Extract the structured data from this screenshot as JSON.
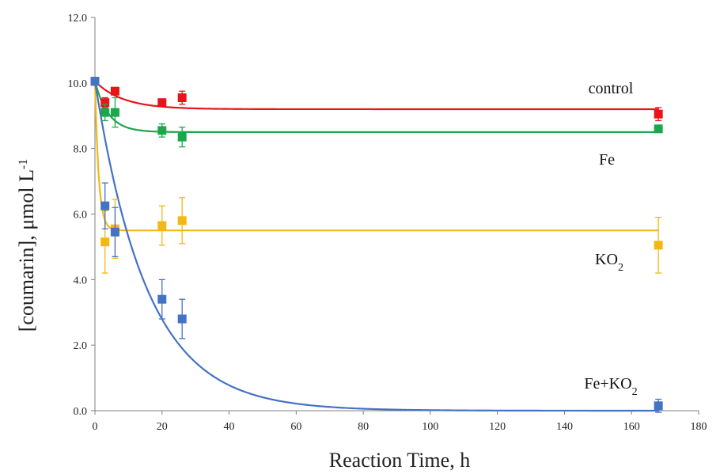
{
  "chart_data": {
    "type": "scatter",
    "xlabel": "Reaction Time, h",
    "ylabel": {
      "main": "[coumarin], μmol L",
      "sup": "-1"
    },
    "xlim": [
      0,
      180
    ],
    "ylim": [
      0,
      12
    ],
    "xticks": [
      "0",
      "20",
      "40",
      "60",
      "80",
      "100",
      "120",
      "140",
      "160",
      "180"
    ],
    "yticks": [
      "0.0",
      "2.0",
      "4.0",
      "6.0",
      "8.0",
      "10.0",
      "12.0"
    ],
    "grid": false,
    "legend": "none",
    "series": [
      {
        "name": "control",
        "label_parts": [
          "control"
        ],
        "color": "#e8141b",
        "points": [
          {
            "x": 0,
            "y": 10.05,
            "err": 0.1
          },
          {
            "x": 3,
            "y": 9.4,
            "err": 0.15
          },
          {
            "x": 6,
            "y": 9.75,
            "err": 0.1
          },
          {
            "x": 20,
            "y": 9.4,
            "err": 0.1
          },
          {
            "x": 26,
            "y": 9.55,
            "err": 0.2
          },
          {
            "x": 168,
            "y": 9.05,
            "err": 0.2
          }
        ],
        "fit": {
          "a": 9.2,
          "b": 0.85,
          "k": 0.12
        }
      },
      {
        "name": "Fe",
        "label_parts": [
          "Fe"
        ],
        "color": "#1aa84a",
        "points": [
          {
            "x": 0,
            "y": 10.05,
            "err": 0.1
          },
          {
            "x": 3,
            "y": 9.1,
            "err": 0.25
          },
          {
            "x": 6,
            "y": 9.1,
            "err": 0.45
          },
          {
            "x": 20,
            "y": 8.55,
            "err": 0.2
          },
          {
            "x": 26,
            "y": 8.35,
            "err": 0.3
          },
          {
            "x": 168,
            "y": 8.6,
            "err": 0.1
          }
        ],
        "fit": {
          "a": 8.5,
          "b": 1.55,
          "k": 0.25
        }
      },
      {
        "name": "KO2",
        "label_parts": [
          "KO",
          "2"
        ],
        "color": "#f4b815",
        "points": [
          {
            "x": 0,
            "y": 10.05,
            "err": 0.1
          },
          {
            "x": 3,
            "y": 5.15,
            "err": 0.95
          },
          {
            "x": 6,
            "y": 5.55,
            "err": 0.9
          },
          {
            "x": 20,
            "y": 5.65,
            "err": 0.6
          },
          {
            "x": 26,
            "y": 5.8,
            "err": 0.7
          },
          {
            "x": 168,
            "y": 5.05,
            "err": 0.85
          }
        ],
        "fit": {
          "a": 5.5,
          "b": 4.55,
          "k": 0.9
        }
      },
      {
        "name": "Fe+KO2",
        "label_parts": [
          "Fe+KO",
          "2"
        ],
        "color": "#4472c4",
        "points": [
          {
            "x": 0,
            "y": 10.05,
            "err": 0.1
          },
          {
            "x": 3,
            "y": 6.25,
            "err": 0.7
          },
          {
            "x": 6,
            "y": 5.45,
            "err": 0.75
          },
          {
            "x": 20,
            "y": 3.4,
            "err": 0.6
          },
          {
            "x": 26,
            "y": 2.8,
            "err": 0.6
          },
          {
            "x": 168,
            "y": 0.15,
            "err": 0.2
          }
        ],
        "fit": {
          "a": 0.0,
          "b": 10.05,
          "k": 0.064
        }
      }
    ]
  }
}
